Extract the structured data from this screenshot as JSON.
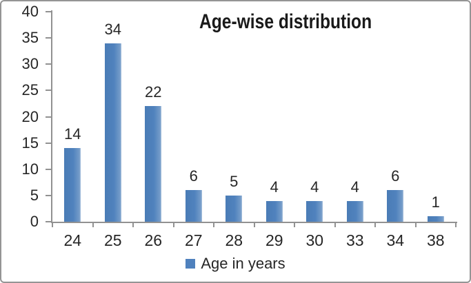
{
  "chart_data": {
    "type": "bar",
    "title": "Age-wise distribution",
    "categories": [
      "24",
      "25",
      "26",
      "27",
      "28",
      "29",
      "30",
      "33",
      "34",
      "38"
    ],
    "values": [
      14,
      34,
      22,
      6,
      5,
      4,
      4,
      4,
      6,
      1
    ],
    "series_name": "Age in years",
    "xlabel": "",
    "ylabel": "",
    "ylim": [
      0,
      40
    ],
    "yticks": [
      0,
      5,
      10,
      15,
      20,
      25,
      30,
      35,
      40
    ],
    "grid": false,
    "data_labels": true,
    "legend_position": "bottom",
    "colors": {
      "bar": "#4F81BD",
      "axis": "#919191",
      "text": "#262626",
      "title": "#1A1A1A",
      "border": "#949494",
      "background": "#FFFFFF"
    }
  }
}
